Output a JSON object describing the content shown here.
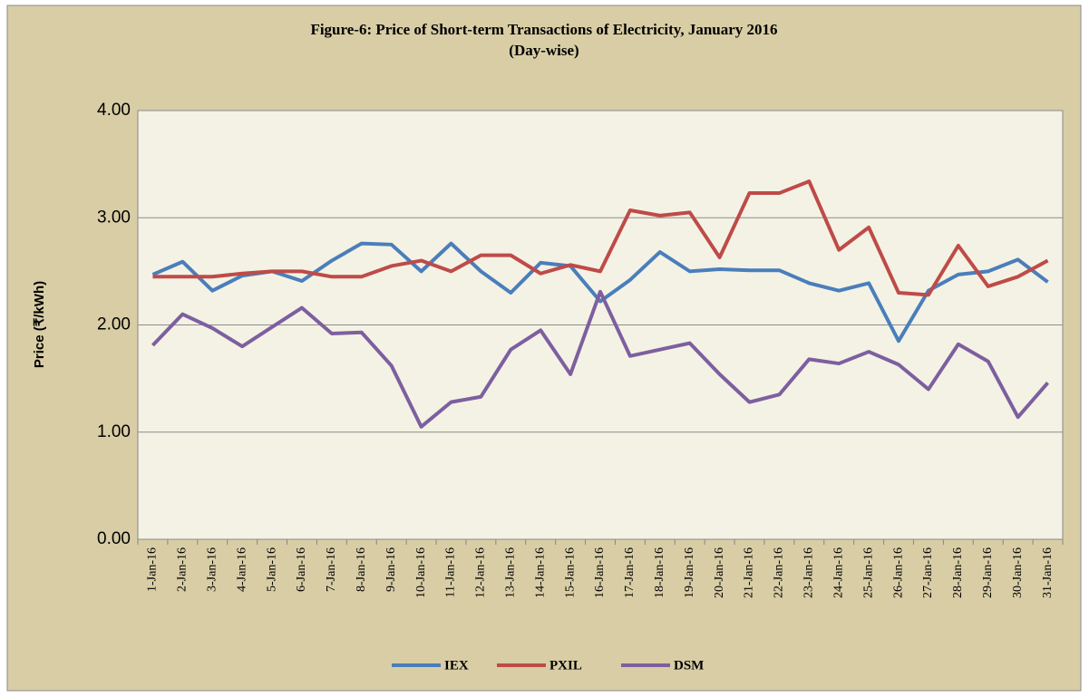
{
  "chart_data": {
    "type": "line",
    "title": "Figure-6: Price of Short-term Transactions of Electricity, January 2016",
    "subtitle": "(Day-wise)",
    "y_label": "Price (₹/kWh)",
    "categories": [
      "1-Jan-16",
      "2-Jan-16",
      "3-Jan-16",
      "4-Jan-16",
      "5-Jan-16",
      "6-Jan-16",
      "7-Jan-16",
      "8-Jan-16",
      "9-Jan-16",
      "10-Jan-16",
      "11-Jan-16",
      "12-Jan-16",
      "13-Jan-16",
      "14-Jan-16",
      "15-Jan-16",
      "16-Jan-16",
      "17-Jan-16",
      "18-Jan-16",
      "19-Jan-16",
      "20-Jan-16",
      "21-Jan-16",
      "22-Jan-16",
      "23-Jan-16",
      "24-Jan-16",
      "25-Jan-16",
      "26-Jan-16",
      "27-Jan-16",
      "28-Jan-16",
      "29-Jan-16",
      "30-Jan-16",
      "31-Jan-16"
    ],
    "series": [
      {
        "name": "IEX",
        "color": "#4a7ebb",
        "values": [
          2.47,
          2.59,
          2.32,
          2.46,
          2.5,
          2.41,
          2.6,
          2.76,
          2.75,
          2.5,
          2.76,
          2.5,
          2.3,
          2.58,
          2.55,
          2.22,
          2.42,
          2.68,
          2.5,
          2.52,
          2.51,
          2.51,
          2.39,
          2.32,
          2.39,
          1.85,
          2.32,
          2.47,
          2.5,
          2.61,
          2.4
        ]
      },
      {
        "name": "PXIL",
        "color": "#be4b48",
        "values": [
          2.45,
          2.45,
          2.45,
          2.48,
          2.5,
          2.5,
          2.45,
          2.45,
          2.55,
          2.6,
          2.5,
          2.65,
          2.65,
          2.48,
          2.56,
          2.5,
          3.07,
          3.02,
          3.05,
          2.63,
          3.23,
          3.23,
          3.34,
          2.7,
          2.91,
          2.3,
          2.28,
          2.74,
          2.36,
          2.45,
          2.6
        ]
      },
      {
        "name": "DSM",
        "color": "#7d5fa0",
        "values": [
          1.81,
          2.1,
          1.97,
          1.8,
          1.98,
          2.16,
          1.92,
          1.93,
          1.62,
          1.05,
          1.28,
          1.33,
          1.77,
          1.95,
          1.54,
          2.31,
          1.71,
          1.77,
          1.83,
          1.54,
          1.28,
          1.35,
          1.68,
          1.64,
          1.75,
          1.63,
          1.4,
          1.82,
          1.66,
          1.14,
          1.46
        ]
      }
    ],
    "ylim": [
      0,
      4
    ],
    "yticks": [
      {
        "value": 0,
        "label": "0.00"
      },
      {
        "value": 1,
        "label": "1.00"
      },
      {
        "value": 2,
        "label": "2.00"
      },
      {
        "value": 3,
        "label": "3.00"
      },
      {
        "value": 4,
        "label": "4.00"
      }
    ],
    "grid": true
  }
}
